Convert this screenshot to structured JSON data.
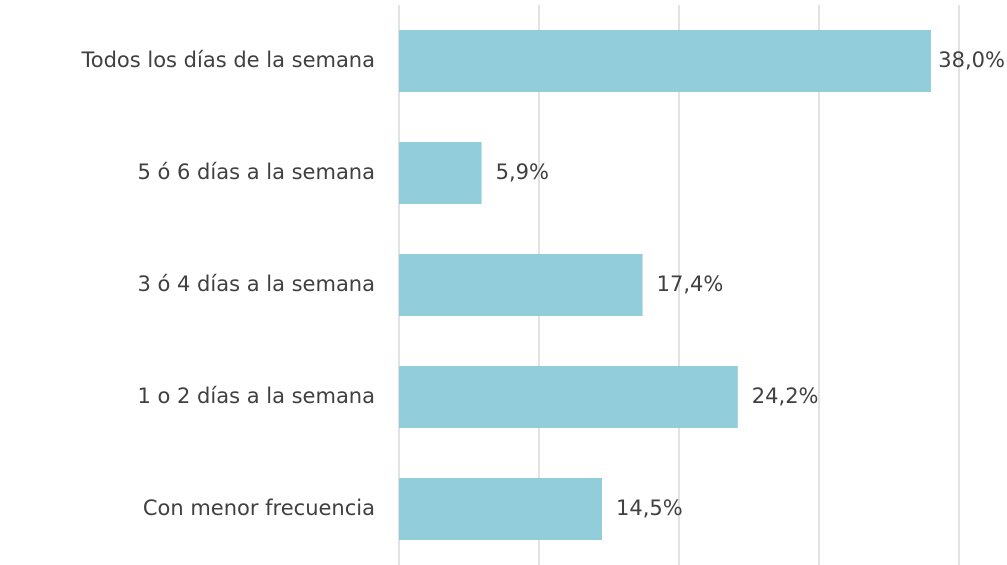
{
  "chart_data": {
    "type": "bar",
    "orientation": "horizontal",
    "categories": [
      "Todos los días de la semana",
      "5 ó 6 días a la semana",
      "3 ó 4 días a la semana",
      "1 o 2 días a la semana",
      "Con menor frecuencia"
    ],
    "values": [
      38.0,
      5.9,
      17.4,
      24.2,
      14.5
    ],
    "value_labels": [
      "38,0%",
      "5,9%",
      "17,4%",
      "24,2%",
      "14,5%"
    ],
    "color": "#92cddc",
    "xlim": [
      0,
      40
    ],
    "xticks": [
      0,
      10,
      20,
      30,
      40
    ],
    "grid": true
  }
}
